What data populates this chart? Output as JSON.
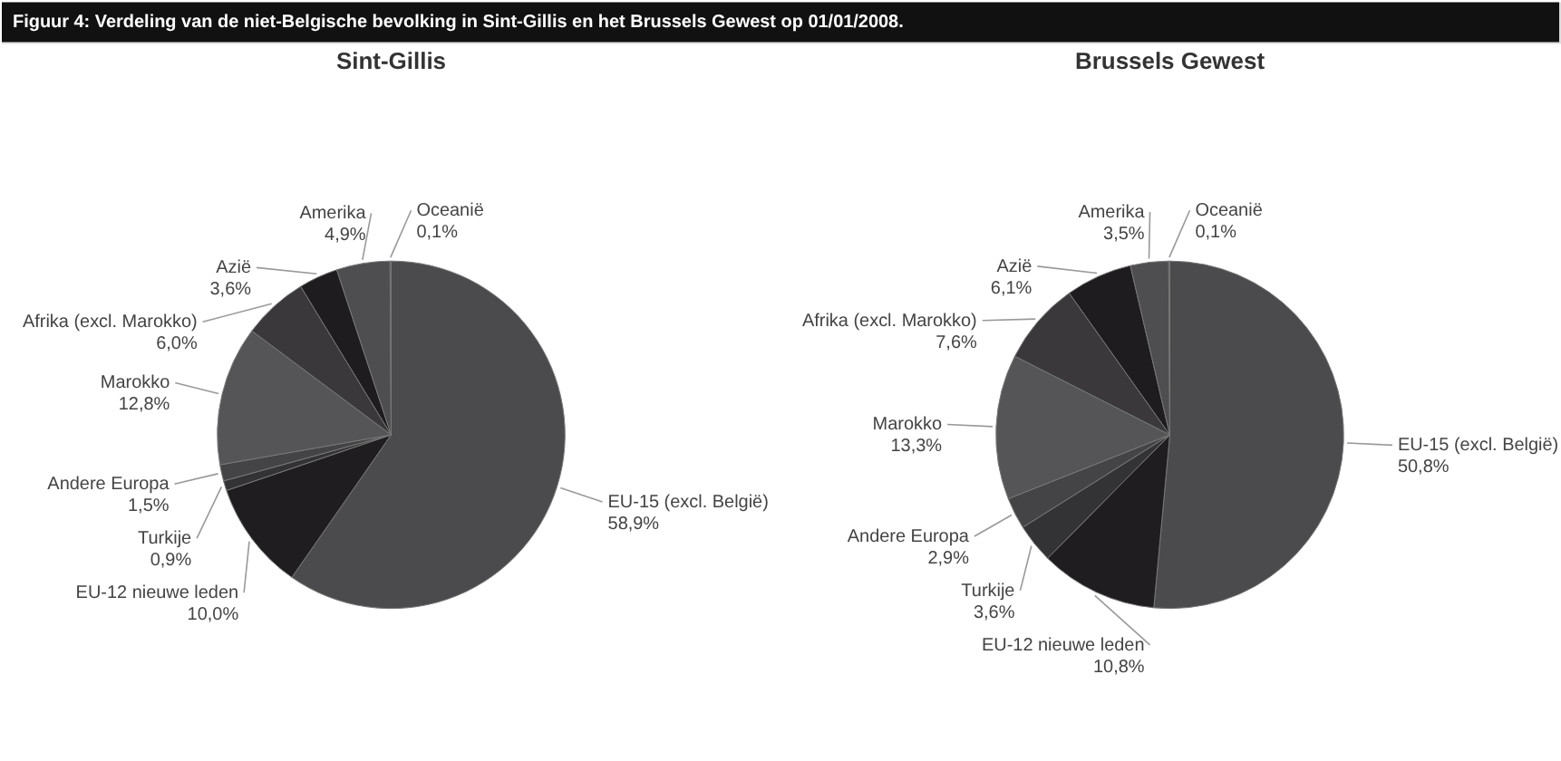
{
  "chart_data": [
    {
      "type": "pie",
      "title": "Sint-Gillis",
      "annotations": [
        "Figuur 4:     Verdeling van de niet-Belgische bevolking in Sint-Gillis en het Brussels Gewest op 01/01/2008."
      ],
      "categories": [
        "EU-15 (excl. België)",
        "EU-12 nieuwe leden",
        "Turkije",
        "Andere Europa",
        "Marokko",
        "Afrika (excl. Marokko)",
        "Azië",
        "Amerika",
        "Oceanië"
      ],
      "values": [
        58.9,
        10.0,
        0.9,
        1.5,
        12.8,
        6.0,
        3.6,
        4.9,
        0.1
      ],
      "value_labels": [
        "58,9%",
        "10,0%",
        "0,9%",
        "1,5%",
        "12,8%",
        "6,0%",
        "3,6%",
        "4,9%",
        "0,1%"
      ],
      "colors": [
        "#4b4b4d",
        "#1f1d20",
        "#333335",
        "#444446",
        "#555557",
        "#3a383b",
        "#1e1c1e",
        "#4e4e50",
        "#2a2a2c"
      ]
    },
    {
      "type": "pie",
      "title": "Brussels Gewest",
      "categories": [
        "EU-15 (excl. België)",
        "EU-12 nieuwe leden",
        "Turkije",
        "Andere Europa",
        "Marokko",
        "Afrika (excl. Marokko)",
        "Azië",
        "Amerika",
        "Oceanië"
      ],
      "values": [
        50.8,
        10.8,
        3.6,
        2.9,
        13.3,
        7.6,
        6.1,
        3.5,
        0.1
      ],
      "value_labels": [
        "50,8%",
        "10,8%",
        "3,6%",
        "2,9%",
        "13,3%",
        "7,6%",
        "6,1%",
        "3,5%",
        "0,1%"
      ],
      "colors": [
        "#4b4b4d",
        "#1f1d20",
        "#333335",
        "#444446",
        "#555557",
        "#3a383b",
        "#1e1c1e",
        "#4e4e50",
        "#2a2a2c"
      ]
    }
  ]
}
